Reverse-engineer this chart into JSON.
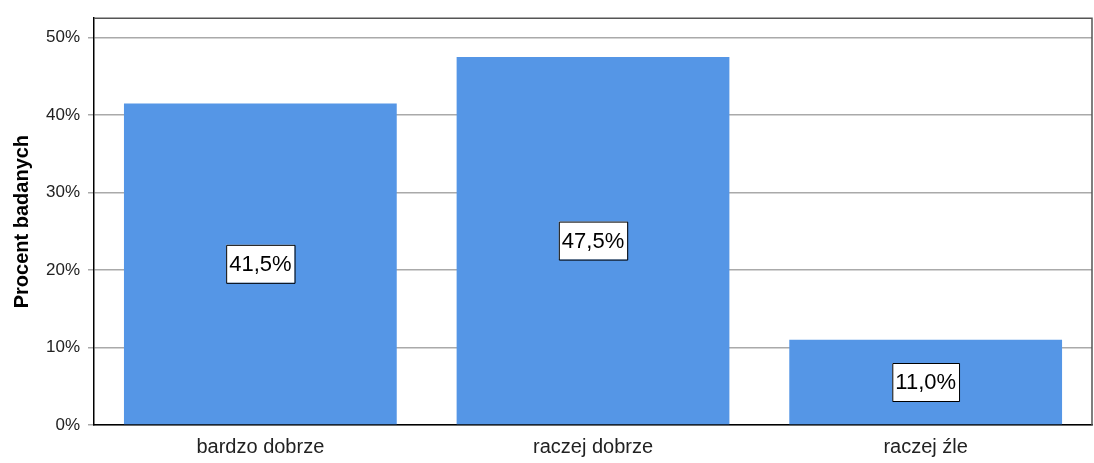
{
  "chart_data": {
    "type": "bar",
    "ylabel": "Procent badanych",
    "categories": [
      "bardzo dobrze",
      "raczej dobrze",
      "raczej źle"
    ],
    "values": [
      41.5,
      47.5,
      11.0
    ],
    "color": "#5596e6",
    "value_labels": [
      "41,5%",
      "47,5%",
      "11,0%"
    ],
    "ylim": [
      0,
      52.5
    ],
    "yticks": [
      {
        "value": 0,
        "label": "0%"
      },
      {
        "value": 10,
        "label": "10%"
      },
      {
        "value": 20,
        "label": "20%"
      },
      {
        "value": 30,
        "label": "30%"
      },
      {
        "value": 40,
        "label": "40%"
      },
      {
        "value": 50,
        "label": "50%"
      }
    ],
    "grid": "y",
    "legend": false
  }
}
